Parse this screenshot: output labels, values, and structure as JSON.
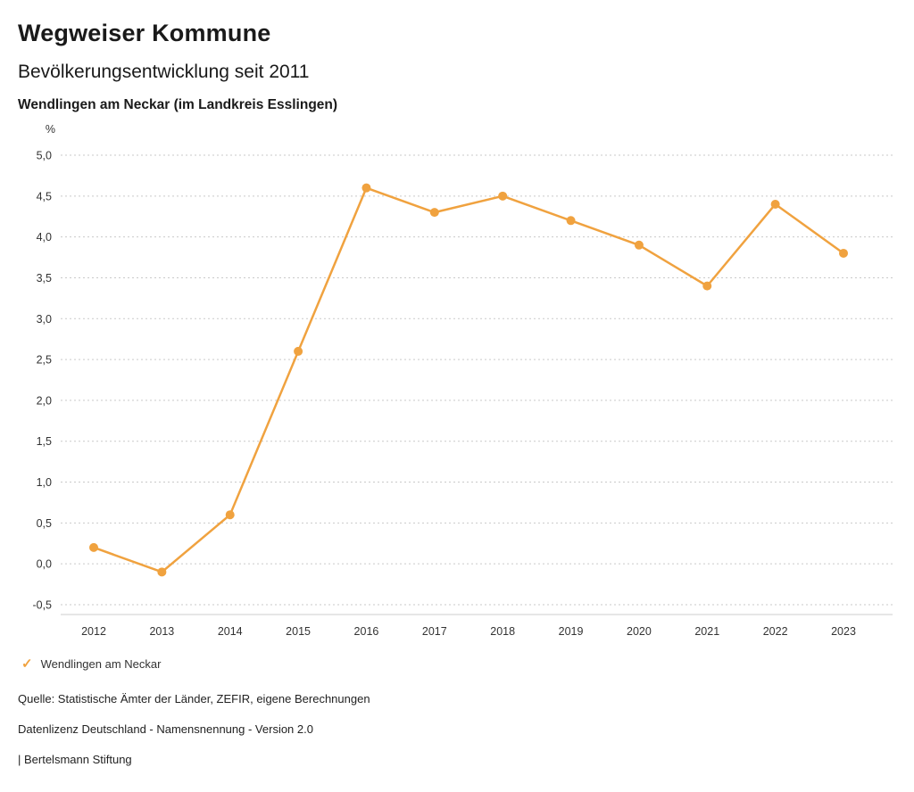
{
  "header": {
    "title": "Wegweiser Kommune",
    "subtitle": "Bevölkerungsentwicklung seit 2011",
    "municipality": "Wendlingen am Neckar (im Landkreis Esslingen)"
  },
  "chart_data": {
    "type": "line",
    "title": "Bevölkerungsentwicklung seit 2011",
    "subtitle": "Wendlingen am Neckar (im Landkreis Esslingen)",
    "unit_label": "%",
    "x": [
      2012,
      2013,
      2014,
      2015,
      2016,
      2017,
      2018,
      2019,
      2020,
      2021,
      2022,
      2023
    ],
    "xtick_labels": [
      "2012",
      "2013",
      "2014",
      "2015",
      "2016",
      "2017",
      "2018",
      "2019",
      "2020",
      "2021",
      "2022",
      "2023"
    ],
    "series": [
      {
        "name": "Wendlingen am Neckar",
        "values": [
          0.2,
          -0.1,
          0.6,
          2.6,
          4.6,
          4.3,
          4.5,
          4.2,
          3.9,
          3.4,
          4.4,
          3.8
        ]
      }
    ],
    "ylim": [
      -0.5,
      5.0
    ],
    "ytick_step": 0.5,
    "yticks": [
      5.0,
      4.5,
      4.0,
      3.5,
      3.0,
      2.5,
      2.0,
      1.5,
      1.0,
      0.5,
      0.0,
      -0.5
    ],
    "ytick_labels": [
      "5,0",
      "4,5",
      "4,0",
      "3,5",
      "3,0",
      "2,5",
      "2,0",
      "1,5",
      "1,0",
      "0,5",
      "0,0",
      "-0,5"
    ],
    "grid": "horizontal-dotted",
    "legend_position": "bottom-left",
    "line_color": "#F0A23F",
    "grid_color": "#c9c9c9",
    "axis_line_color": "#cccccc",
    "tick_label_color": "#333333"
  },
  "legend": {
    "check_icon": "✓",
    "label": "Wendlingen am Neckar"
  },
  "footer": {
    "source": "Quelle: Statistische Ämter der Länder, ZEFIR, eigene Berechnungen",
    "license": "Datenlizenz Deutschland - Namensnennung - Version 2.0",
    "attribution": "| Bertelsmann Stiftung"
  }
}
